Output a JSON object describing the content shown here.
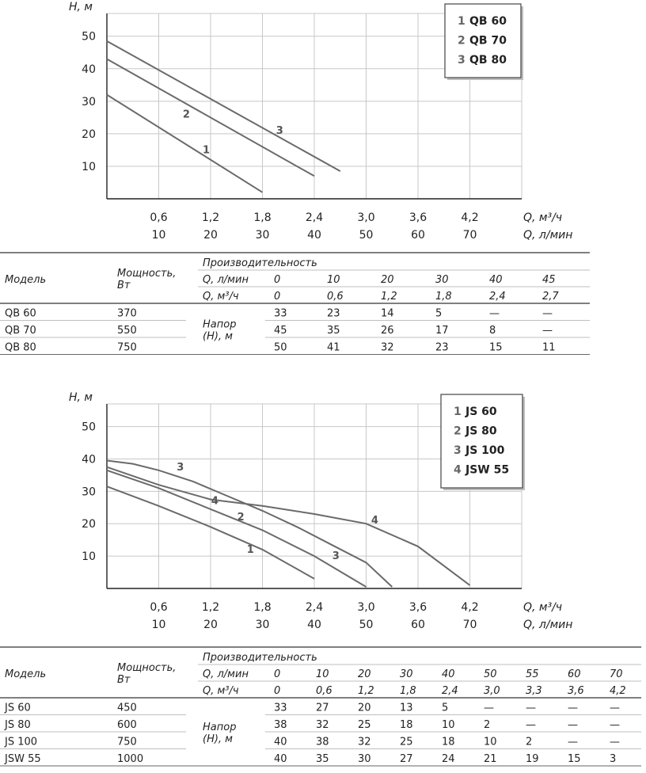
{
  "chart_data": [
    {
      "type": "line",
      "ylabel": "H, м",
      "xlabel_primary": "Q, м³/ч",
      "xlabel_secondary": "Q, л/мин",
      "x_ticks_primary": [
        "0,6",
        "1,2",
        "1,8",
        "2,4",
        "3,0",
        "3,6",
        "4,2"
      ],
      "x_ticks_secondary": [
        "10",
        "20",
        "30",
        "40",
        "50",
        "60",
        "70"
      ],
      "y_ticks": [
        "10",
        "20",
        "30",
        "40",
        "50"
      ],
      "xlim": [
        0,
        4.8
      ],
      "ylim": [
        0,
        57
      ],
      "legend": [
        {
          "num": "1",
          "name": "QB 60"
        },
        {
          "num": "2",
          "name": "QB 70"
        },
        {
          "num": "3",
          "name": "QB 80"
        }
      ],
      "series": [
        {
          "name": "QB 60",
          "label": "1",
          "x": [
            0,
            1.8
          ],
          "y": [
            32,
            2
          ],
          "label_at": [
            1.15,
            14
          ]
        },
        {
          "name": "QB 70",
          "label": "2",
          "x": [
            0,
            2.4
          ],
          "y": [
            43,
            7
          ],
          "label_at": [
            0.92,
            25
          ]
        },
        {
          "name": "QB 80",
          "label": "3",
          "x": [
            0,
            2.7
          ],
          "y": [
            48.5,
            8.5
          ],
          "label_at": [
            2.0,
            20
          ]
        }
      ]
    },
    {
      "type": "line",
      "ylabel": "H, м",
      "xlabel_primary": "Q, м³/ч",
      "xlabel_secondary": "Q, л/мин",
      "x_ticks_primary": [
        "0,6",
        "1,2",
        "1,8",
        "2,4",
        "3,0",
        "3,6",
        "4,2"
      ],
      "x_ticks_secondary": [
        "10",
        "20",
        "30",
        "40",
        "50",
        "60",
        "70"
      ],
      "y_ticks": [
        "10",
        "20",
        "30",
        "40",
        "50"
      ],
      "xlim": [
        0,
        4.8
      ],
      "ylim": [
        0,
        57
      ],
      "legend": [
        {
          "num": "1",
          "name": "JS 60"
        },
        {
          "num": "2",
          "name": "JS 80"
        },
        {
          "num": "3",
          "name": "JS 100"
        },
        {
          "num": "4",
          "name": "JSW 55"
        }
      ],
      "series": [
        {
          "name": "JS 60",
          "label": "1",
          "x": [
            0,
            0.6,
            1.2,
            1.8,
            2.4
          ],
          "y": [
            31.5,
            25.5,
            19,
            12,
            3
          ],
          "label_at": [
            1.66,
            11
          ]
        },
        {
          "name": "JS 80",
          "label": "2",
          "x": [
            0,
            0.6,
            1.2,
            1.8,
            2.4,
            3.0
          ],
          "y": [
            36.5,
            31,
            24.5,
            18,
            10,
            0.5
          ],
          "label_at": [
            1.55,
            21
          ]
        },
        {
          "name": "JS 100",
          "label": "3",
          "x": [
            0,
            0.3,
            0.6,
            1.0,
            1.4,
            1.8,
            2.2,
            2.6,
            3.0,
            3.3
          ],
          "y": [
            39.5,
            38.5,
            36.5,
            33,
            28.5,
            24,
            19,
            13.5,
            8,
            0.5
          ],
          "label_at": [
            0.85,
            36.5
          ]
        },
        {
          "name": "JSW 55",
          "label": "4",
          "x": [
            0,
            0.6,
            1.2,
            1.8,
            2.4,
            3.0,
            3.6,
            4.2
          ],
          "y": [
            37.5,
            32,
            27.5,
            25.5,
            23,
            20,
            13,
            1
          ],
          "label_at": [
            1.25,
            26
          ]
        }
      ],
      "label_offsets": [
        {
          "label": "3",
          "x": 2.65,
          "y": 9
        }
      ],
      "label_offsets_note": "",
      "extra_label": {
        "label": "4",
        "x": 3.1,
        "y": 20
      }
    }
  ],
  "table1": {
    "col_model": "Модель",
    "col_power": [
      "Мощность,",
      "Вт"
    ],
    "col_perf": "Производительность",
    "row_q_lmin_label": "Q, л/мин",
    "row_q_m3h_label": "Q, м³/ч",
    "q_lmin": [
      "0",
      "10",
      "20",
      "30",
      "40",
      "45"
    ],
    "q_m3h": [
      "0",
      "0,6",
      "1,2",
      "1,8",
      "2,4",
      "2,7"
    ],
    "head_label": [
      "Напор",
      "(H), м"
    ],
    "rows": [
      {
        "model": "QB 60",
        "power": "370",
        "values": [
          "33",
          "23",
          "14",
          "5",
          "—",
          "—"
        ]
      },
      {
        "model": "QB 70",
        "power": "550",
        "values": [
          "45",
          "35",
          "26",
          "17",
          "8",
          "—"
        ]
      },
      {
        "model": "QB 80",
        "power": "750",
        "values": [
          "50",
          "41",
          "32",
          "23",
          "15",
          "11"
        ]
      }
    ]
  },
  "table2": {
    "col_model": "Модель",
    "col_power": [
      "Мощность,",
      "Вт"
    ],
    "col_perf": "Производительность",
    "row_q_lmin_label": "Q, л/мин",
    "row_q_m3h_label": "Q, м³/ч",
    "q_lmin": [
      "0",
      "10",
      "20",
      "30",
      "40",
      "50",
      "55",
      "60",
      "70"
    ],
    "q_m3h": [
      "0",
      "0,6",
      "1,2",
      "1,8",
      "2,4",
      "3,0",
      "3,3",
      "3,6",
      "4,2"
    ],
    "head_label": [
      "Напор",
      "(H), м"
    ],
    "rows": [
      {
        "model": "JS 60",
        "power": "450",
        "values": [
          "33",
          "27",
          "20",
          "13",
          "5",
          "—",
          "—",
          "—",
          "—"
        ]
      },
      {
        "model": "JS 80",
        "power": "600",
        "values": [
          "38",
          "32",
          "25",
          "18",
          "10",
          "2",
          "—",
          "—",
          "—"
        ]
      },
      {
        "model": "JS 100",
        "power": "750",
        "values": [
          "40",
          "38",
          "32",
          "25",
          "18",
          "10",
          "2",
          "—",
          "—"
        ]
      },
      {
        "model": "JSW 55",
        "power": "1000",
        "values": [
          "40",
          "35",
          "30",
          "27",
          "24",
          "21",
          "19",
          "15",
          "3"
        ]
      }
    ]
  }
}
